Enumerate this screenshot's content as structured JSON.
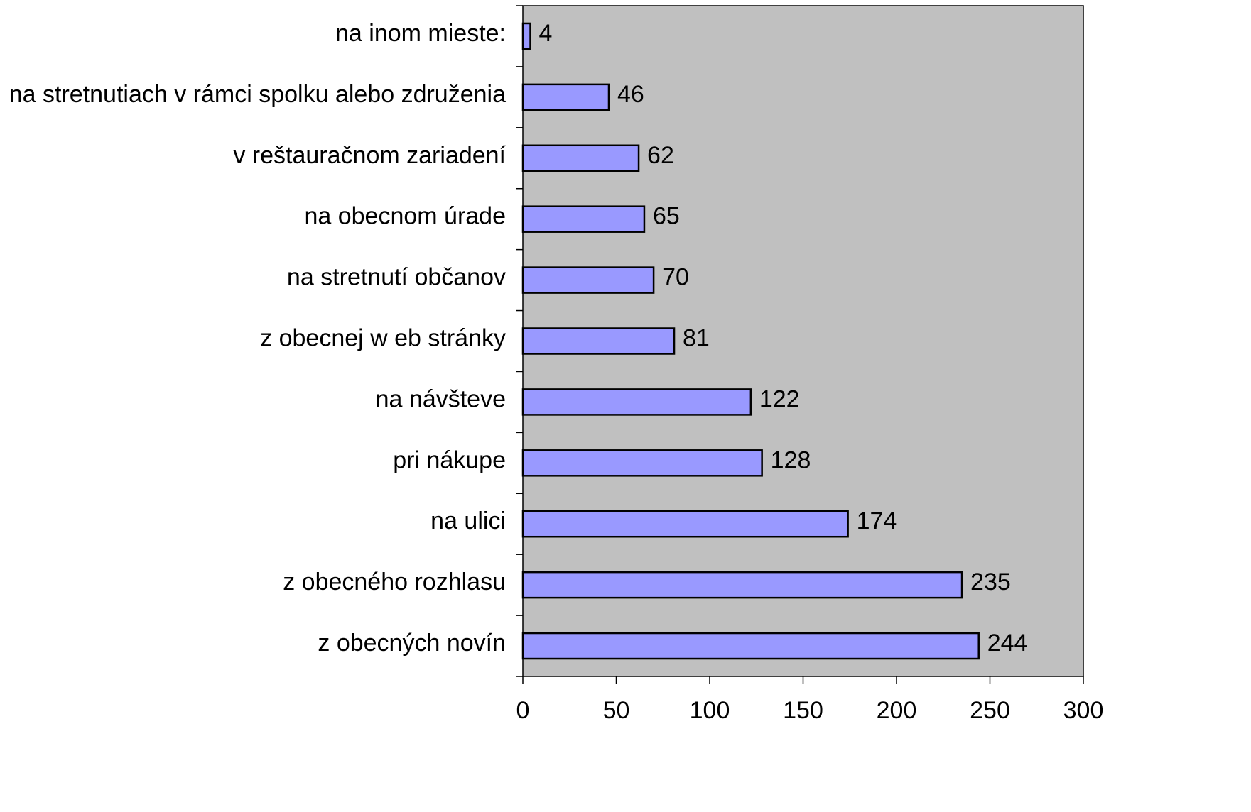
{
  "chart_data": {
    "type": "bar",
    "orientation": "horizontal",
    "categories": [
      "na inom mieste:",
      "na stretnutiach v rámci spolku alebo združenia",
      "v reštauračnom zariadení",
      "na obecnom úrade",
      "na stretnutí občanov",
      "z obecnej w eb stránky",
      "na návšteve",
      "pri nákupe",
      "na ulici",
      "z obecného rozhlasu",
      "z obecných novín"
    ],
    "values": [
      4,
      46,
      62,
      65,
      70,
      81,
      122,
      128,
      174,
      235,
      244
    ],
    "color": "#9999ff",
    "background": "#c0c0c0",
    "xlim": [
      0,
      300
    ],
    "xticks": [
      0,
      50,
      100,
      150,
      200,
      250,
      300
    ],
    "grid": false
  }
}
